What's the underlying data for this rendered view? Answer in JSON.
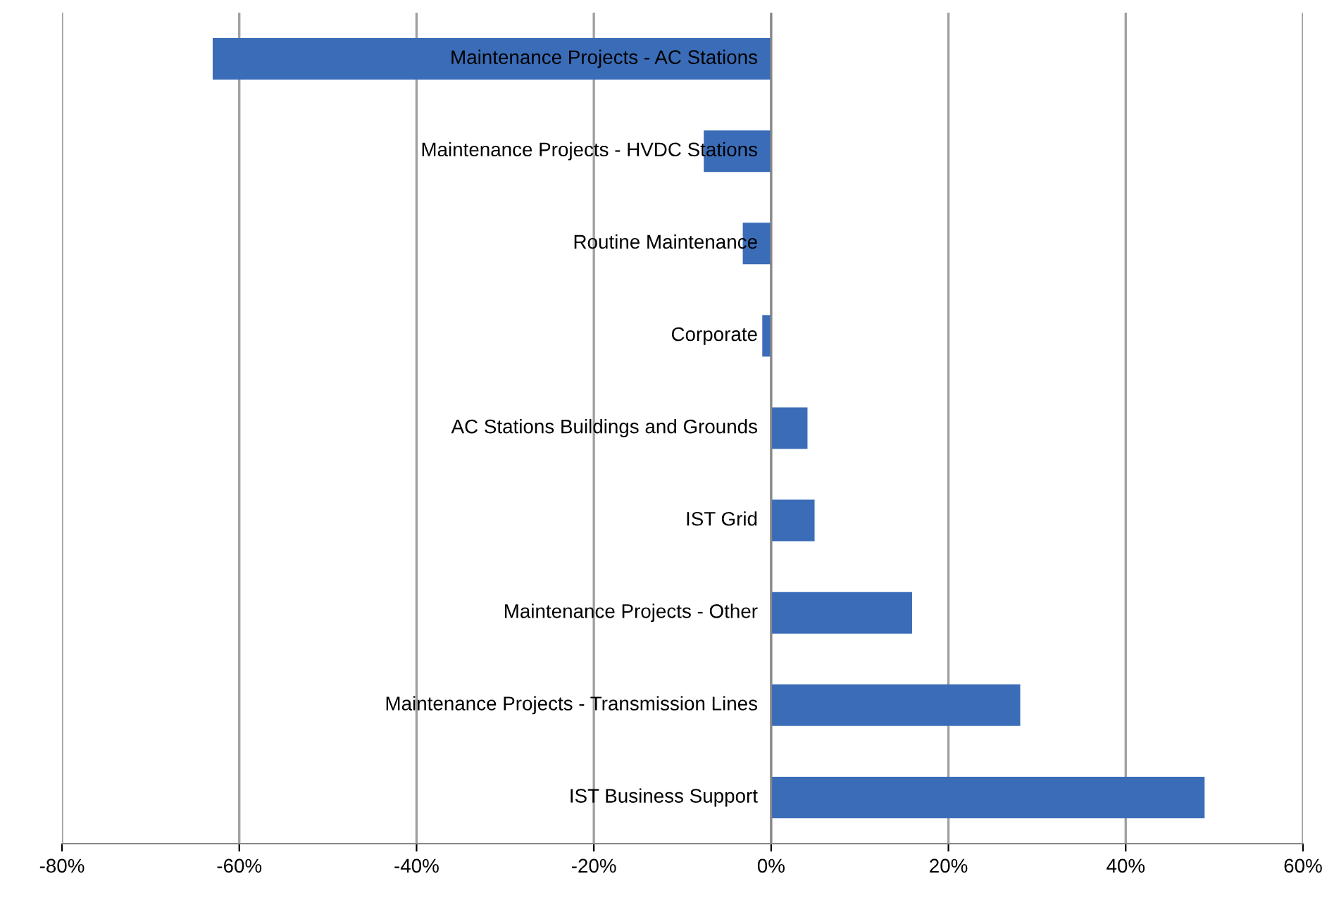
{
  "chart_data": {
    "type": "bar",
    "orientation": "horizontal",
    "categories": [
      "Maintenance Projects - AC Stations",
      "Maintenance Projects - HVDC Stations",
      "Routine Maintenance",
      "Corporate",
      "AC Stations Buildings and Grounds",
      "IST Grid",
      "Maintenance Projects - Other",
      "Maintenance Projects - Transmission Lines",
      "IST Business Support"
    ],
    "values": [
      -63,
      -7.6,
      -3.2,
      -1,
      4.1,
      4.9,
      15.9,
      28.1,
      48.9
    ],
    "color": "#3a6cb8",
    "xlim": [
      -80,
      60
    ],
    "xticks": [
      {
        "value": -80,
        "label": "-80%"
      },
      {
        "value": -60,
        "label": "-60%"
      },
      {
        "value": -40,
        "label": "-40%"
      },
      {
        "value": -20,
        "label": "-20%"
      },
      {
        "value": 0,
        "label": "0%"
      },
      {
        "value": 20,
        "label": "20%"
      },
      {
        "value": 40,
        "label": "40%"
      },
      {
        "value": 60,
        "label": "60%"
      }
    ],
    "grid": "x",
    "legend": false
  }
}
